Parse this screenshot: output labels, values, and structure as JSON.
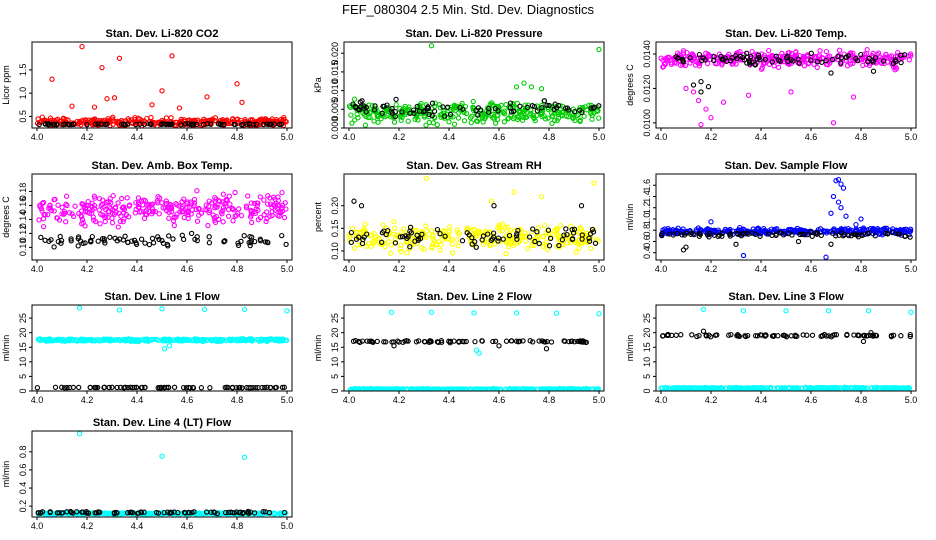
{
  "figure_title": "FEF_080304  2.5 Min. Std. Dev. Diagnostics",
  "colors": {
    "red": "#ff0000",
    "green": "#00cc00",
    "magenta": "#ff00ff",
    "yellow": "#ffff00",
    "blue": "#0000ff",
    "cyan": "#00ffff",
    "black": "#000000"
  },
  "chart_data": [
    {
      "type": "scatter",
      "title": "Stan. Dev. Li-820 CO2",
      "ylabel": "Licor ppm",
      "xlim": [
        3.98,
        5.02
      ],
      "ylim": [
        0.25,
        2.1
      ],
      "xticks": [
        "4.0",
        "4.2",
        "4.4",
        "4.6",
        "4.8",
        "5.0"
      ],
      "yticks": [
        "0.5",
        "1.0",
        "1.5"
      ],
      "series": [
        {
          "name": "color",
          "color": "red",
          "base": 0.38,
          "noise": 0.12,
          "x": [
            4.18,
            4.33,
            4.26,
            4.54,
            4.8,
            4.06,
            4.5,
            4.68,
            4.28,
            4.82,
            4.46,
            4.31,
            4.23,
            4.57,
            4.14
          ],
          "y": [
            2.0,
            1.75,
            1.55,
            1.8,
            1.2,
            1.3,
            1.05,
            0.92,
            0.88,
            0.8,
            0.75,
            0.9,
            0.7,
            0.68,
            0.72
          ]
        },
        {
          "name": "black",
          "color": "black",
          "base": 0.33,
          "noise": 0.02,
          "x": [],
          "y": []
        }
      ]
    },
    {
      "type": "scatter",
      "title": "Stan. Dev. Li-820 Pressure",
      "ylabel": "kPa",
      "xlim": [
        3.98,
        5.02
      ],
      "ylim": [
        0.0,
        0.023
      ],
      "xticks": [
        "4.0",
        "4.2",
        "4.4",
        "4.6",
        "4.8",
        "5.0"
      ],
      "yticks": [
        "0.000",
        "0.005",
        "0.010",
        "0.015",
        "0.020"
      ],
      "series": [
        {
          "name": "color",
          "color": "green",
          "base": 0.004,
          "noise": 0.004,
          "x": [
            4.33,
            5.0,
            4.7,
            4.67,
            4.73,
            4.77
          ],
          "y": [
            0.022,
            0.021,
            0.012,
            0.011,
            0.011,
            0.0105
          ]
        },
        {
          "name": "black",
          "color": "black",
          "base": 0.005,
          "noise": 0.003,
          "x": [],
          "y": []
        }
      ]
    },
    {
      "type": "scatter",
      "title": "Stan. Dev. Li-820 Temp.",
      "ylabel": "degrees C",
      "xlim": [
        3.98,
        5.02
      ],
      "ylim": [
        0.0097,
        0.0147
      ],
      "xticks": [
        "4.0",
        "4.2",
        "4.4",
        "4.6",
        "4.8",
        "5.0"
      ],
      "yticks": [
        "0.0100",
        "0.0120",
        "0.0140"
      ],
      "series": [
        {
          "name": "color",
          "color": "magenta",
          "base": 0.0137,
          "noise": 0.0007,
          "x": [
            4.16,
            4.2,
            4.15,
            4.69,
            4.77,
            4.52,
            4.13,
            4.35,
            4.18,
            4.1,
            4.25
          ],
          "y": [
            0.0099,
            0.0103,
            0.0113,
            0.01,
            0.0115,
            0.0118,
            0.0118,
            0.0116,
            0.0108,
            0.012,
            0.0112
          ]
        },
        {
          "name": "black",
          "color": "black",
          "base": 0.0137,
          "noise": 0.0004,
          "x": [
            4.13,
            4.16,
            4.16,
            4.19,
            4.68,
            4.85
          ],
          "y": [
            0.0122,
            0.0124,
            0.0118,
            0.0121,
            0.0129,
            0.013
          ]
        }
      ]
    },
    {
      "type": "scatter",
      "title": "Stan. Dev. Amb. Box Temp.",
      "ylabel": "degrees C",
      "xlim": [
        3.98,
        5.02
      ],
      "ylim": [
        0.082,
        0.205
      ],
      "xticks": [
        "4.0",
        "4.2",
        "4.4",
        "4.6",
        "4.8",
        "5.0"
      ],
      "yticks": [
        "0.10",
        "0.12",
        "0.14",
        "0.16",
        "0.18"
      ],
      "series": [
        {
          "name": "color",
          "color": "magenta",
          "base": 0.155,
          "noise": 0.03,
          "x": [],
          "y": []
        },
        {
          "name": "black",
          "color": "black",
          "base": 0.11,
          "noise": 0.012,
          "x": [],
          "y": []
        }
      ]
    },
    {
      "type": "scatter",
      "title": "Stan. Dev. Gas Stream RH",
      "ylabel": "percent",
      "xlim": [
        3.98,
        5.02
      ],
      "ylim": [
        0.08,
        0.27
      ],
      "xticks": [
        "4.0",
        "4.2",
        "4.4",
        "4.6",
        "4.8",
        "5.0"
      ],
      "yticks": [
        "0.10",
        "0.15",
        "0.20"
      ],
      "series": [
        {
          "name": "color",
          "color": "yellow",
          "base": 0.13,
          "noise": 0.04,
          "x": [
            4.31,
            4.98,
            4.66,
            4.77,
            4.57
          ],
          "y": [
            0.26,
            0.25,
            0.23,
            0.22,
            0.21
          ]
        },
        {
          "name": "black",
          "color": "black",
          "base": 0.13,
          "noise": 0.035,
          "x": [
            4.02,
            4.05,
            4.58,
            4.93
          ],
          "y": [
            0.21,
            0.2,
            0.2,
            0.2
          ]
        }
      ]
    },
    {
      "type": "scatter",
      "title": "Stan. Dev. Sample Flow",
      "ylabel": "ml/min",
      "xlim": [
        3.98,
        5.02
      ],
      "ylim": [
        0.27,
        1.8
      ],
      "xticks": [
        "4.0",
        "4.2",
        "4.4",
        "4.6",
        "4.8",
        "5.0"
      ],
      "yticks": [
        "0.4",
        "0.6",
        "0.8",
        "1.0",
        "1.2",
        "1.4",
        "1.6"
      ],
      "series": [
        {
          "name": "color",
          "color": "blue",
          "base": 0.78,
          "noise": 0.08,
          "x": [
            4.7,
            4.71,
            4.72,
            4.73,
            4.69,
            4.71,
            4.72,
            4.68,
            4.74,
            4.33,
            4.2,
            4.66,
            4.78,
            4.8
          ],
          "y": [
            1.68,
            1.7,
            1.62,
            1.55,
            1.4,
            1.3,
            1.2,
            1.1,
            1.05,
            0.35,
            0.95,
            0.32,
            0.9,
            1.0
          ]
        },
        {
          "name": "black",
          "color": "black",
          "base": 0.72,
          "noise": 0.06,
          "x": [
            4.1,
            4.09,
            4.3,
            4.55,
            4.68
          ],
          "y": [
            0.5,
            0.45,
            0.55,
            0.6,
            0.55
          ]
        }
      ]
    },
    {
      "type": "scatter",
      "title": "Stan. Dev. Line 1 Flow",
      "ylabel": "ml/min",
      "xlim": [
        3.98,
        5.02
      ],
      "ylim": [
        0,
        29.5
      ],
      "xticks": [
        "4.0",
        "4.2",
        "4.4",
        "4.6",
        "4.8",
        "5.0"
      ],
      "yticks": [
        "0",
        "5",
        "10",
        "15",
        "20",
        "25"
      ],
      "series": [
        {
          "name": "color",
          "color": "cyan",
          "base": 17.5,
          "noise": 0.6,
          "x": [
            4.17,
            4.5,
            4.67,
            4.83,
            5.0,
            4.33,
            4.51,
            4.53
          ],
          "y": [
            28.5,
            28.2,
            28.0,
            28.0,
            27.5,
            27.8,
            14.5,
            15.5
          ]
        },
        {
          "name": "black",
          "color": "black",
          "base": 1.2,
          "noise": 0.15,
          "x": [],
          "y": []
        }
      ]
    },
    {
      "type": "scatter",
      "title": "Stan. Dev. Line 2 Flow",
      "ylabel": "ml/min",
      "xlim": [
        3.98,
        5.02
      ],
      "ylim": [
        0,
        29.5
      ],
      "xticks": [
        "4.0",
        "4.2",
        "4.4",
        "4.6",
        "4.8",
        "5.0"
      ],
      "yticks": [
        "0",
        "5",
        "10",
        "15",
        "20",
        "25"
      ],
      "series": [
        {
          "name": "color",
          "color": "cyan",
          "base": 0.6,
          "noise": 0.3,
          "x": [
            4.17,
            4.33,
            4.5,
            4.67,
            4.83,
            5.0,
            4.51,
            4.52
          ],
          "y": [
            27.0,
            27.0,
            26.8,
            26.8,
            26.7,
            26.5,
            14.0,
            13.0
          ]
        },
        {
          "name": "black",
          "color": "black",
          "base": 17.0,
          "noise": 0.5,
          "x": [
            4.79,
            4.18,
            4.6
          ],
          "y": [
            14.5,
            15.5,
            15.5
          ]
        }
      ]
    },
    {
      "type": "scatter",
      "title": "Stan. Dev. Line 3 Flow",
      "ylabel": "ml/min",
      "xlim": [
        3.98,
        5.02
      ],
      "ylim": [
        0,
        29.5
      ],
      "xticks": [
        "4.0",
        "4.2",
        "4.4",
        "4.6",
        "4.8",
        "5.0"
      ],
      "yticks": [
        "0",
        "5",
        "10",
        "15",
        "20",
        "25"
      ],
      "series": [
        {
          "name": "color",
          "color": "cyan",
          "base": 1.0,
          "noise": 0.3,
          "x": [
            4.17,
            4.33,
            4.5,
            4.67,
            4.83,
            5.0
          ],
          "y": [
            28.0,
            27.5,
            27.5,
            27.5,
            27.5,
            27.0
          ]
        },
        {
          "name": "black",
          "color": "black",
          "base": 19.0,
          "noise": 0.5,
          "x": [
            4.17,
            4.81,
            4.84
          ],
          "y": [
            20.5,
            17.0,
            20.0
          ]
        }
      ]
    },
    {
      "type": "scatter",
      "title": "Stan. Dev. Line 4 (LT) Flow",
      "ylabel": "ml/min",
      "xlim": [
        3.98,
        5.02
      ],
      "ylim": [
        0.08,
        1.03
      ],
      "xticks": [
        "4.0",
        "4.2",
        "4.4",
        "4.6",
        "4.8",
        "5.0"
      ],
      "yticks": [
        "0.2",
        "0.4",
        "0.6",
        "0.8"
      ],
      "series": [
        {
          "name": "color",
          "color": "cyan",
          "base": 0.12,
          "noise": 0.012,
          "x": [
            4.17,
            4.5,
            4.83
          ],
          "y": [
            1.0,
            0.75,
            0.74
          ]
        },
        {
          "name": "black",
          "color": "black",
          "base": 0.13,
          "noise": 0.015,
          "x": [],
          "y": []
        }
      ]
    }
  ]
}
